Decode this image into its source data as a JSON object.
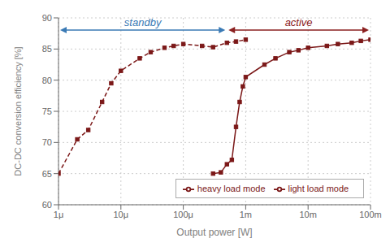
{
  "chart_data": {
    "type": "line",
    "xlabel": "Output power [W]",
    "ylabel": "DC-DC conversion efficiency [%]",
    "log": "x",
    "grid": true,
    "legend": "lower right",
    "xlim": [
      1e-06,
      0.1
    ],
    "ylim": [
      60,
      90
    ],
    "xticks": [
      {
        "value": 1e-06,
        "label": "1μ"
      },
      {
        "value": 1e-05,
        "label": "10μ"
      },
      {
        "value": 0.0001,
        "label": "100μ"
      },
      {
        "value": 0.001,
        "label": "1m"
      },
      {
        "value": 0.01,
        "label": "10m"
      },
      {
        "value": 0.1,
        "label": "100m"
      }
    ],
    "yticks": [
      60,
      65,
      70,
      75,
      80,
      85,
      90
    ],
    "series": [
      {
        "name": "heavy load mode",
        "color": "#7b1818",
        "line_style": "solid",
        "marker": "square",
        "x": [
          0.0003,
          0.0004,
          0.0005,
          0.0006,
          0.0007,
          0.0008,
          0.0009,
          0.001,
          0.002,
          0.003,
          0.005,
          0.007,
          0.01,
          0.02,
          0.03,
          0.05,
          0.07,
          0.1
        ],
        "values": [
          65.0,
          65.2,
          66.5,
          67.2,
          72.5,
          76.5,
          79.0,
          80.5,
          82.5,
          83.5,
          84.5,
          84.8,
          85.2,
          85.5,
          85.8,
          86.0,
          86.3,
          86.5
        ]
      },
      {
        "name": "light load mode",
        "color": "#7b1818",
        "line_style": "dashed",
        "marker": "square",
        "x": [
          1e-06,
          2e-06,
          3e-06,
          5e-06,
          7e-06,
          1e-05,
          2e-05,
          3e-05,
          5e-05,
          7e-05,
          0.0001,
          0.0002,
          0.0003,
          0.0005,
          0.0007,
          0.001
        ],
        "values": [
          65.0,
          70.5,
          72.0,
          76.5,
          79.5,
          81.5,
          83.5,
          84.5,
          85.2,
          85.5,
          85.8,
          85.5,
          85.3,
          86.0,
          86.2,
          86.5
        ]
      }
    ],
    "annotations": [
      {
        "text": "standby",
        "color": "#3a7ab5",
        "x_start": 1e-06,
        "x_end": 0.0005
      },
      {
        "text": "active",
        "color": "#8b2020",
        "x_start": 0.0005,
        "x_end": 0.1
      }
    ]
  }
}
